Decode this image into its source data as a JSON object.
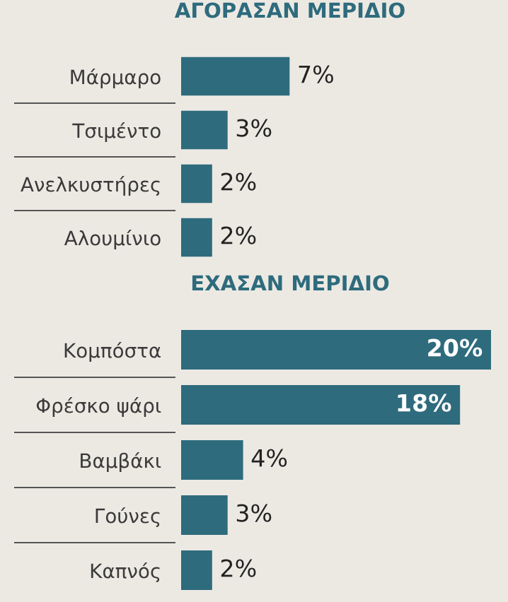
{
  "chart_data": [
    {
      "type": "bar",
      "orientation": "horizontal",
      "title": "ΑΓΟΡΑΣΑΝ ΜΕΡΙΔΙΟ",
      "tick_labels": "y",
      "categories": [
        "Μάρμαρο",
        "Τσιμέντο",
        "Ανελκυστήρες",
        "Αλουμίνιο"
      ],
      "values": [
        7,
        3,
        2,
        2
      ],
      "value_labels": [
        "7%",
        "3%",
        "2%",
        "2%"
      ],
      "color": "#2e6b7d"
    },
    {
      "type": "bar",
      "orientation": "horizontal",
      "title": "ΕΧΑΣΑΝ ΜΕΡΙΔΙΟ",
      "tick_labels": "y",
      "categories": [
        "Κομπόστα",
        "Φρέσκο ψάρι",
        "Βαμβάκι",
        "Γούνες",
        "Καπνός"
      ],
      "values": [
        20,
        18,
        4,
        3,
        2
      ],
      "value_labels": [
        "20%",
        "18%",
        "4%",
        "3%",
        "2%"
      ],
      "color": "#2e6b7d"
    }
  ]
}
